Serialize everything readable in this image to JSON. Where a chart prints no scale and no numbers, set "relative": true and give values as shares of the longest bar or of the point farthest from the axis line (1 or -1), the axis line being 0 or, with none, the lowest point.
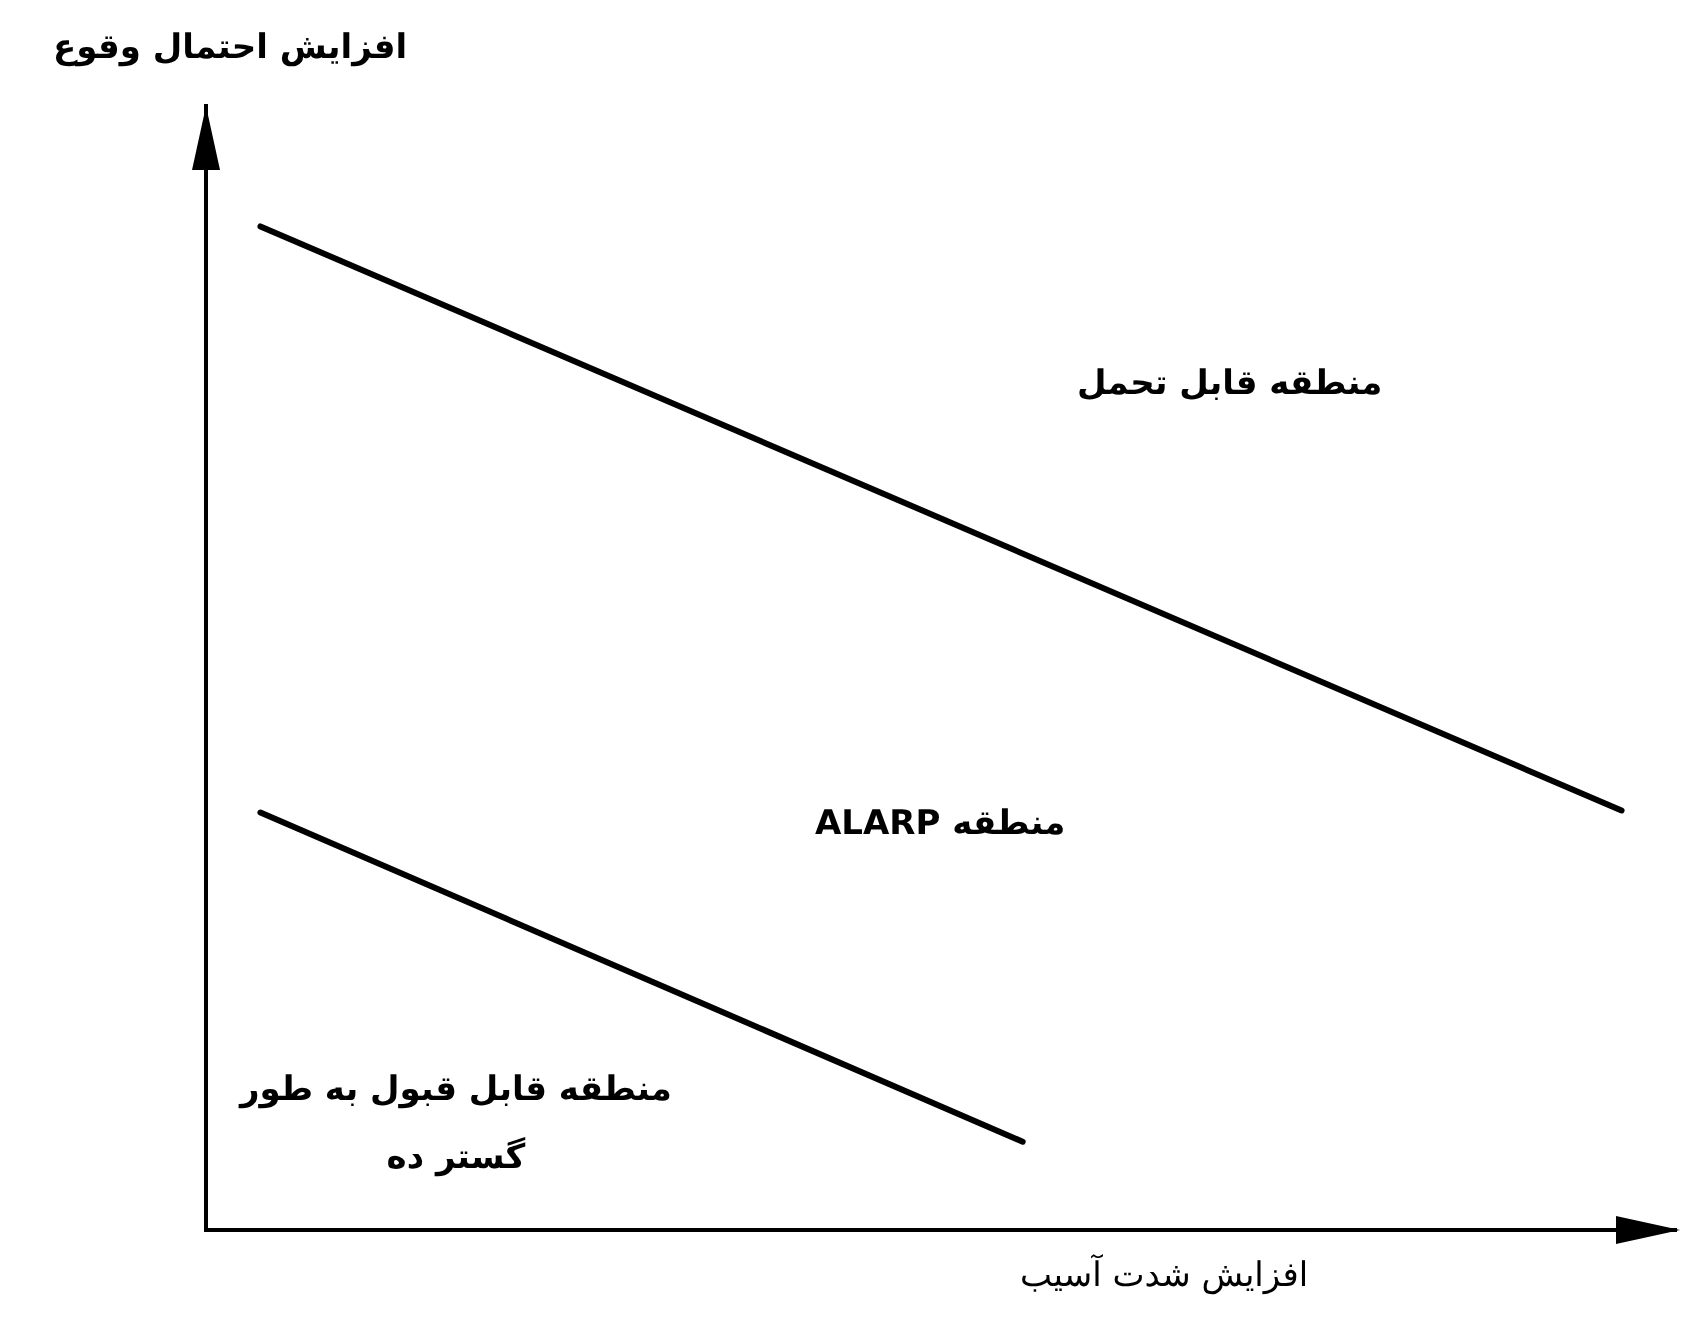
{
  "chart_data": {
    "type": "line",
    "relative": true,
    "xlabel": "افزایش شدت آسیب",
    "ylabel": "افزایش احتمال وقوع",
    "categories": [
      null,
      null,
      null,
      null,
      null,
      null,
      null,
      null,
      null,
      null,
      null,
      null,
      null,
      null,
      null,
      null,
      null,
      null,
      null,
      null,
      null,
      null,
      null,
      null,
      null,
      null,
      null,
      null
    ],
    "series": [
      {
        "color": "#000000",
        "values": [
          null,
          1,
          null,
          null,
          null,
          null,
          null,
          null,
          null,
          null,
          null,
          null,
          null,
          null,
          null,
          null,
          null,
          null,
          null,
          null,
          null,
          null,
          null,
          null,
          null,
          null,
          0.418,
          null
        ]
      },
      {
        "color": "#000000",
        "values": [
          null,
          0.416,
          null,
          null,
          null,
          null,
          null,
          null,
          null,
          null,
          null,
          null,
          null,
          null,
          null,
          0.088,
          null,
          null,
          null,
          null,
          null,
          null,
          null,
          null,
          null,
          null,
          null,
          null
        ]
      }
    ],
    "annotations": [
      "منطقه قابل تحمل",
      "منطقه ALARP",
      "منطقه قابل قبول به طور گستر ده"
    ],
    "grid": false,
    "legend": false,
    "marker": "none",
    "line_style": "solid"
  }
}
